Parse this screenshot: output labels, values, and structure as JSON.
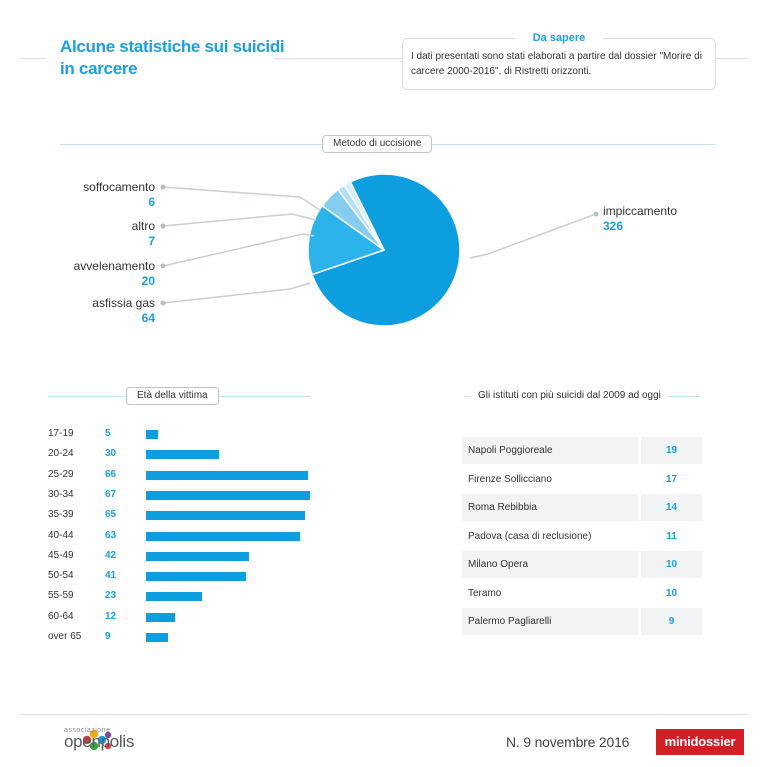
{
  "title": "Alcune statistiche sui suicidi in carcere",
  "info": {
    "heading": "Da sapere",
    "text": "I dati presentati sono stati elaborati a partire dal dossier \"Morire di carcere 2000-2016\", di Ristretti orizzonti."
  },
  "sections": {
    "method": "Metodo di uccisione",
    "age": "Età della vittima",
    "institutes": "Gli istituti con più suicidi dal 2009 ad oggi"
  },
  "colors": {
    "accent": "#1a9fe0",
    "bar": "#0d9ee0",
    "pie": [
      "#0d9ee0",
      "#2cb3ec",
      "#84cdf1",
      "#b3e0f6",
      "#d4eefa"
    ],
    "brand_red": "#d32027"
  },
  "chart_data": [
    {
      "type": "pie",
      "title": "Metodo di uccisione",
      "slices": [
        {
          "label": "impiccamento",
          "value": 326
        },
        {
          "label": "asfissia gas",
          "value": 64
        },
        {
          "label": "avvelenamento",
          "value": 20
        },
        {
          "label": "altro",
          "value": 7
        },
        {
          "label": "soffocamento",
          "value": 6
        }
      ]
    },
    {
      "type": "bar",
      "orientation": "horizontal",
      "title": "Età della vittima",
      "categories": [
        "17-19",
        "20-24",
        "25-29",
        "30-34",
        "35-39",
        "40-44",
        "45-49",
        "50-54",
        "55-59",
        "60-64",
        "over 65"
      ],
      "values": [
        5,
        30,
        66,
        67,
        65,
        63,
        42,
        41,
        23,
        12,
        9
      ]
    },
    {
      "type": "table",
      "title": "Gli istituti con più suicidi dal 2009 ad oggi",
      "rows": [
        {
          "name": "Napoli Poggioreale",
          "value": 19
        },
        {
          "name": "Firenze Sollicciano",
          "value": 17
        },
        {
          "name": "Roma Rebibbia",
          "value": 14
        },
        {
          "name": "Padova (casa di reclusione)",
          "value": 11
        },
        {
          "name": "Milano Opera",
          "value": 10
        },
        {
          "name": "Teramo",
          "value": 10
        },
        {
          "name": "Palermo Pagliarelli",
          "value": 9
        }
      ]
    }
  ],
  "footer": {
    "logo_small": "associazione",
    "logo_big": "openpolis",
    "issue": "N. 9  novembre 2016",
    "brand": "minidossier"
  }
}
